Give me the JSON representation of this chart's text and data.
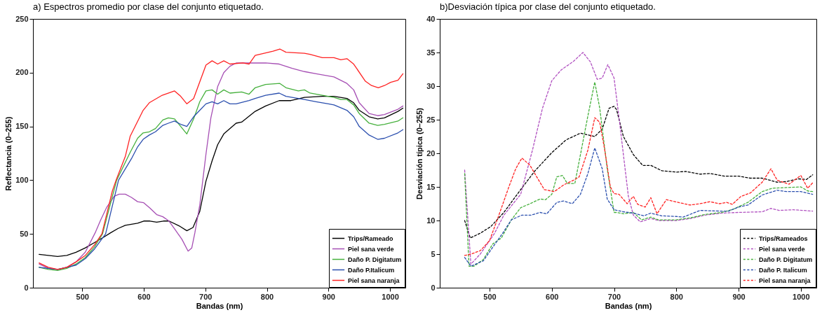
{
  "chart_data": [
    {
      "type": "line",
      "title": "a) Espectros promedio por clase del conjunto etiquetado.",
      "xlabel": "Bandas (nm)",
      "ylabel": "Reflectancia (0–255)",
      "xlim": [
        420,
        1025
      ],
      "xticks": [
        500,
        600,
        700,
        800,
        900,
        1000
      ],
      "ylim": [
        0,
        250
      ],
      "yticks": [
        0,
        50,
        100,
        150,
        200,
        250
      ],
      "legend": "bottom right",
      "line_style": "solid",
      "series": [
        {
          "name": "Trips/Rameado",
          "color": "#000000",
          "x": [
            430,
            445,
            460,
            475,
            490,
            505,
            520,
            535,
            546,
            558,
            570,
            590,
            600,
            610,
            621,
            632,
            641,
            659,
            670,
            680,
            691,
            701,
            711,
            720,
            730,
            750,
            759,
            781,
            798,
            820,
            839,
            861,
            890,
            909,
            930,
            941,
            950,
            966,
            980,
            991,
            1013,
            1021
          ],
          "values": [
            31,
            30,
            29,
            30,
            33,
            37,
            42,
            47,
            51,
            55,
            58,
            60,
            62,
            62,
            61,
            62,
            62,
            57,
            53,
            56,
            71,
            99,
            118,
            133,
            143,
            153,
            154,
            164,
            169,
            174,
            174,
            177,
            178,
            178,
            176,
            172,
            165,
            159,
            157,
            158,
            164,
            167
          ]
        },
        {
          "name": "Piel sana verde",
          "color": "#a64fb4",
          "x": [
            430,
            445,
            460,
            475,
            490,
            505,
            521,
            530,
            540,
            552,
            560,
            570,
            580,
            590,
            600,
            610,
            621,
            631,
            641,
            651,
            662,
            672,
            678,
            683,
            691,
            701,
            709,
            720,
            730,
            740,
            750,
            798,
            820,
            841,
            861,
            880,
            909,
            930,
            941,
            950,
            966,
            980,
            991,
            1013,
            1021
          ],
          "values": [
            22,
            18,
            17,
            19,
            24,
            33,
            51,
            63,
            75,
            85,
            87,
            87,
            84,
            80,
            79,
            74,
            68,
            66,
            62,
            54,
            45,
            34,
            37,
            51,
            77,
            124,
            158,
            187,
            200,
            206,
            209,
            209,
            208,
            204,
            201,
            199,
            196,
            190,
            184,
            172,
            162,
            160,
            161,
            166,
            169
          ]
        },
        {
          "name": "Daño P. Digitatum",
          "color": "#45b03c",
          "x": [
            430,
            445,
            460,
            475,
            490,
            505,
            520,
            533,
            556,
            578,
            590,
            599,
            609,
            619,
            631,
            640,
            650,
            660,
            670,
            681,
            691,
            701,
            711,
            720,
            730,
            740,
            759,
            771,
            781,
            798,
            821,
            831,
            851,
            861,
            870,
            890,
            909,
            920,
            930,
            941,
            950,
            966,
            980,
            991,
            1013,
            1021
          ],
          "values": [
            19,
            17,
            16,
            18,
            22,
            28,
            38,
            50,
            100,
            126,
            139,
            144,
            145,
            148,
            156,
            158,
            157,
            150,
            143,
            157,
            173,
            183,
            184,
            180,
            184,
            181,
            182,
            180,
            186,
            189,
            190,
            186,
            183,
            184,
            181,
            179,
            177,
            175,
            175,
            170,
            162,
            153,
            151,
            152,
            155,
            158
          ]
        },
        {
          "name": "Daño P.Italicum",
          "color": "#2b4fae",
          "x": [
            430,
            445,
            460,
            475,
            490,
            505,
            520,
            538,
            559,
            580,
            590,
            599,
            609,
            619,
            631,
            640,
            650,
            660,
            670,
            681,
            691,
            701,
            711,
            720,
            730,
            740,
            750,
            771,
            781,
            798,
            820,
            831,
            861,
            880,
            900,
            909,
            930,
            941,
            950,
            966,
            980,
            991,
            1013,
            1021
          ],
          "values": [
            19,
            18,
            17,
            19,
            21,
            27,
            36,
            50,
            100,
            120,
            131,
            138,
            142,
            145,
            151,
            153,
            155,
            152,
            150,
            159,
            165,
            171,
            173,
            171,
            174,
            171,
            171,
            174,
            176,
            179,
            181,
            178,
            175,
            173,
            171,
            170,
            165,
            159,
            150,
            142,
            138,
            139,
            144,
            147
          ]
        },
        {
          "name": "Piel sana naranja",
          "color": "#ff2222",
          "x": [
            430,
            445,
            460,
            475,
            490,
            505,
            520,
            532,
            549,
            555,
            570,
            578,
            599,
            609,
            630,
            650,
            660,
            670,
            681,
            701,
            711,
            720,
            730,
            740,
            761,
            771,
            781,
            810,
            821,
            831,
            861,
            870,
            890,
            909,
            920,
            930,
            941,
            960,
            970,
            981,
            991,
            1001,
            1013,
            1021
          ],
          "values": [
            23,
            19,
            17,
            19,
            24,
            30,
            40,
            50,
            90,
            100,
            122,
            141,
            165,
            172,
            179,
            183,
            178,
            171,
            176,
            207,
            211,
            208,
            211,
            208,
            209,
            208,
            216,
            220,
            222,
            219,
            218,
            217,
            214,
            214,
            212,
            213,
            208,
            192,
            188,
            186,
            188,
            191,
            193,
            199
          ]
        }
      ]
    },
    {
      "type": "line",
      "title": "b)Desviación típica por clase del conjunto etiquetado.",
      "xlabel": "Bandas (nm)",
      "ylabel": "Desviación típica (0–255)",
      "xlim": [
        420,
        1025
      ],
      "xticks": [
        500,
        600,
        700,
        800,
        900,
        1000
      ],
      "ylim": [
        0,
        40
      ],
      "yticks": [
        0,
        5,
        10,
        15,
        20,
        25,
        30,
        35,
        40
      ],
      "legend": "bottom right",
      "line_style": "dashed",
      "series": [
        {
          "name": "Trips/Rameados",
          "color": "#000000",
          "x": [
            460,
            469,
            485,
            502,
            523,
            550,
            573,
            600,
            623,
            646,
            669,
            681,
            692,
            700,
            704,
            715,
            731,
            746,
            759,
            777,
            800,
            815,
            838,
            854,
            877,
            900,
            919,
            938,
            962,
            977,
            996,
            1009,
            1019
          ],
          "values": [
            10,
            7.4,
            8.1,
            9.1,
            11.2,
            14.6,
            17.4,
            20.1,
            22,
            23,
            22.5,
            23.6,
            26.7,
            27,
            26.5,
            22.5,
            19.8,
            18.2,
            18.2,
            17.4,
            17.2,
            17.3,
            16.9,
            17,
            16.6,
            16.6,
            16.3,
            16.3,
            15.7,
            15.8,
            16.2,
            16.1,
            16.8
          ]
        },
        {
          "name": "Piel sana verde",
          "color": "#b050c0",
          "x": [
            460,
            470,
            485,
            500,
            508,
            523,
            550,
            569,
            585,
            600,
            615,
            635,
            650,
            662,
            673,
            681,
            690,
            700,
            708,
            715,
            723,
            731,
            742,
            759,
            771,
            800,
            823,
            846,
            873,
            900,
            938,
            952,
            965,
            988,
            1019
          ],
          "values": [
            17.5,
            3.5,
            5,
            7,
            8.1,
            10.8,
            13.9,
            20.5,
            26.7,
            30.8,
            32.4,
            33.7,
            35,
            33.6,
            31,
            31.2,
            33.2,
            31.2,
            25.3,
            19.8,
            13.6,
            10.8,
            9.8,
            10.3,
            10,
            10,
            10.3,
            10.8,
            11.1,
            11.2,
            11.3,
            11.8,
            11.5,
            11.6,
            11.4
          ]
        },
        {
          "name": "Daño P. Digitatum",
          "color": "#45b03c",
          "x": [
            460,
            467,
            475,
            490,
            505,
            519,
            535,
            550,
            565,
            581,
            590,
            600,
            608,
            617,
            625,
            637,
            646,
            658,
            669,
            677,
            689,
            700,
            704,
            715,
            731,
            744,
            759,
            771,
            800,
            823,
            846,
            873,
            892,
            915,
            938,
            954,
            977,
            1000,
            1011,
            1019
          ],
          "values": [
            17,
            3.2,
            3.2,
            4.2,
            6.5,
            7.4,
            10.1,
            11.9,
            12.5,
            13.2,
            13.1,
            13.9,
            16.5,
            16.7,
            15.5,
            15.5,
            19.8,
            25.6,
            30.6,
            26.7,
            17.7,
            11.2,
            11.2,
            11,
            11.2,
            10.1,
            10.5,
            10.1,
            10.1,
            10.4,
            10.9,
            11.2,
            11.7,
            12.7,
            14.3,
            14.8,
            14.9,
            15,
            14.4,
            14.3
          ]
        },
        {
          "name": "Daño P. Italicum",
          "color": "#2b4fae",
          "x": [
            460,
            470,
            490,
            505,
            521,
            535,
            552,
            567,
            581,
            592,
            608,
            619,
            633,
            646,
            658,
            669,
            681,
            689,
            700,
            715,
            731,
            748,
            759,
            776,
            800,
            811,
            838,
            869,
            884,
            900,
            915,
            938,
            962,
            977,
            1000,
            1019
          ],
          "values": [
            4.5,
            3.2,
            4,
            6,
            8.1,
            10.1,
            10.8,
            10.8,
            11.2,
            11,
            12.7,
            12.9,
            12.5,
            13.9,
            17,
            20.8,
            17.7,
            13.2,
            11.6,
            11.3,
            11.1,
            10.7,
            11.1,
            10.7,
            10.6,
            10.5,
            11.5,
            11.4,
            11.4,
            12,
            12.3,
            13.8,
            14.5,
            14.3,
            14.3,
            13.9
          ]
        },
        {
          "name": "Piel sana naranja",
          "color": "#ff2222",
          "x": [
            460,
            470,
            485,
            500,
            515,
            531,
            542,
            552,
            565,
            577,
            588,
            604,
            619,
            635,
            644,
            658,
            669,
            677,
            685,
            694,
            700,
            708,
            721,
            731,
            738,
            750,
            759,
            769,
            784,
            803,
            822,
            838,
            854,
            869,
            881,
            890,
            904,
            919,
            938,
            952,
            962,
            981,
            1000,
            1011,
            1019
          ],
          "values": [
            4.8,
            5,
            5.5,
            7,
            10.8,
            15,
            17.7,
            19.3,
            18.2,
            16.3,
            14.6,
            14.3,
            15.3,
            16,
            16.5,
            20.5,
            25.3,
            24.6,
            20.5,
            15,
            14,
            13.9,
            12.5,
            13.6,
            12.4,
            12,
            13.4,
            11,
            13.1,
            12.7,
            12.3,
            12.5,
            12.8,
            12.5,
            12.7,
            12.4,
            13.6,
            14.1,
            15.7,
            17.7,
            16,
            15.4,
            16.7,
            14.8,
            15.6
          ]
        }
      ]
    }
  ]
}
